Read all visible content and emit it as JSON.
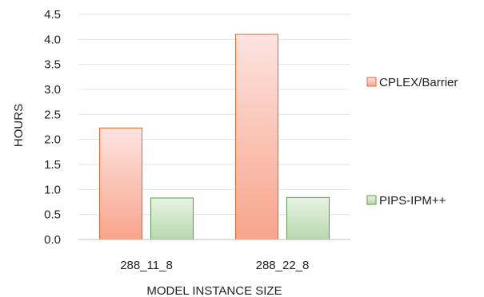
{
  "chart_data": {
    "type": "bar",
    "title": "",
    "xlabel": "MODEL INSTANCE SIZE",
    "ylabel": "HOURS",
    "ylim": [
      0,
      4.5
    ],
    "yticks": [
      "0.0",
      "0.5",
      "1.0",
      "1.5",
      "2.0",
      "2.5",
      "3.0",
      "3.5",
      "4.0",
      "4.5"
    ],
    "categories": [
      "288_11_8",
      "288_22_8"
    ],
    "grid": true,
    "legend_position": "right",
    "series": [
      {
        "name": "CPLEX/Barrier",
        "values": [
          2.23,
          4.1
        ],
        "color_top": "#fde3e0",
        "color_bottom": "#f8a58b",
        "stroke": "#e06b2e"
      },
      {
        "name": "PIPS-IPM++",
        "values": [
          0.83,
          0.84
        ],
        "color_top": "#e8f3e4",
        "color_bottom": "#b6d8ac",
        "stroke": "#5a9a4a"
      }
    ]
  }
}
